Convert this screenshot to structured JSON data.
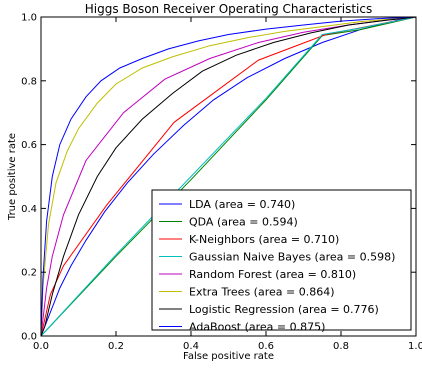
{
  "chart_data": {
    "type": "line",
    "title": "Higgs Boson Receiver Operating Characteristics",
    "xlabel": "False positive rate",
    "ylabel": "True positive rate",
    "xlim": [
      0.0,
      1.0
    ],
    "ylim": [
      0.0,
      1.0
    ],
    "x_ticks": [
      "0.0",
      "0.2",
      "0.4",
      "0.6",
      "0.8",
      "1.0"
    ],
    "y_ticks": [
      "0.0",
      "0.2",
      "0.4",
      "0.6",
      "0.8",
      "1.0"
    ],
    "grid": false,
    "legend_position": "lower-right",
    "series": [
      {
        "name": "LDA (area = 0.740)",
        "color": "#0000ff",
        "x": [
          0,
          0.01,
          0.03,
          0.05,
          0.08,
          0.12,
          0.17,
          0.23,
          0.3,
          0.38,
          0.46,
          0.55,
          0.65,
          0.75,
          0.85,
          0.95,
          1.0
        ],
        "y": [
          0,
          0.03,
          0.09,
          0.15,
          0.22,
          0.3,
          0.39,
          0.48,
          0.57,
          0.66,
          0.74,
          0.81,
          0.87,
          0.92,
          0.96,
          0.99,
          1.0
        ]
      },
      {
        "name": "QDA (area = 0.594)",
        "color": "#008000",
        "x": [
          0,
          0.2,
          0.4,
          0.6,
          0.75,
          0.85,
          1.0
        ],
        "y": [
          0,
          0.25,
          0.49,
          0.74,
          0.942,
          0.96,
          1.0
        ]
      },
      {
        "name": "K-Neighbors (area = 0.710)",
        "color": "#ff0000",
        "x": [
          0,
          0.025,
          0.06,
          0.175,
          0.355,
          0.58,
          0.76,
          1.0
        ],
        "y": [
          0,
          0.13,
          0.22,
          0.41,
          0.67,
          0.865,
          0.945,
          1.0
        ]
      },
      {
        "name": "Gaussian Naive Bayes (area = 0.598)",
        "color": "#00bfbf",
        "x": [
          0,
          0.2,
          0.4,
          0.6,
          0.75,
          0.85,
          1.0
        ],
        "y": [
          0,
          0.255,
          0.5,
          0.745,
          0.945,
          0.965,
          1.0
        ]
      },
      {
        "name": "Random Forest (area = 0.810)",
        "color": "#bf00bf",
        "x": [
          0,
          0.015,
          0.03,
          0.06,
          0.12,
          0.22,
          0.33,
          0.45,
          0.58,
          0.7,
          0.82,
          0.92,
          1.0
        ],
        "y": [
          0,
          0.15,
          0.25,
          0.38,
          0.55,
          0.7,
          0.805,
          0.87,
          0.92,
          0.952,
          0.975,
          0.99,
          1.0
        ]
      },
      {
        "name": "Extra Trees (area = 0.864)",
        "color": "#bfbf00",
        "x": [
          0,
          0.005,
          0.02,
          0.04,
          0.07,
          0.1,
          0.15,
          0.2,
          0.27,
          0.35,
          0.45,
          0.55,
          0.65,
          0.75,
          0.85,
          0.95,
          1.0
        ],
        "y": [
          0,
          0.15,
          0.35,
          0.48,
          0.58,
          0.65,
          0.73,
          0.79,
          0.84,
          0.875,
          0.91,
          0.935,
          0.955,
          0.97,
          0.985,
          0.995,
          1.0
        ]
      },
      {
        "name": "Logistic Regression (area = 0.776)",
        "color": "#000000",
        "x": [
          0,
          0.01,
          0.03,
          0.06,
          0.1,
          0.15,
          0.2,
          0.27,
          0.35,
          0.43,
          0.52,
          0.62,
          0.72,
          0.82,
          0.92,
          1.0
        ],
        "y": [
          0,
          0.03,
          0.13,
          0.25,
          0.38,
          0.5,
          0.59,
          0.68,
          0.76,
          0.83,
          0.88,
          0.92,
          0.95,
          0.975,
          0.99,
          1.0
        ]
      },
      {
        "name": "AdaBoost (area = 0.875)",
        "color": "#0000ff",
        "x": [
          0,
          0.005,
          0.015,
          0.03,
          0.05,
          0.08,
          0.12,
          0.16,
          0.21,
          0.27,
          0.34,
          0.42,
          0.5,
          0.6,
          0.7,
          0.8,
          0.9,
          1.0
        ],
        "y": [
          0,
          0.18,
          0.36,
          0.5,
          0.6,
          0.68,
          0.75,
          0.8,
          0.84,
          0.87,
          0.9,
          0.925,
          0.945,
          0.962,
          0.975,
          0.987,
          0.995,
          1.0
        ]
      }
    ]
  }
}
